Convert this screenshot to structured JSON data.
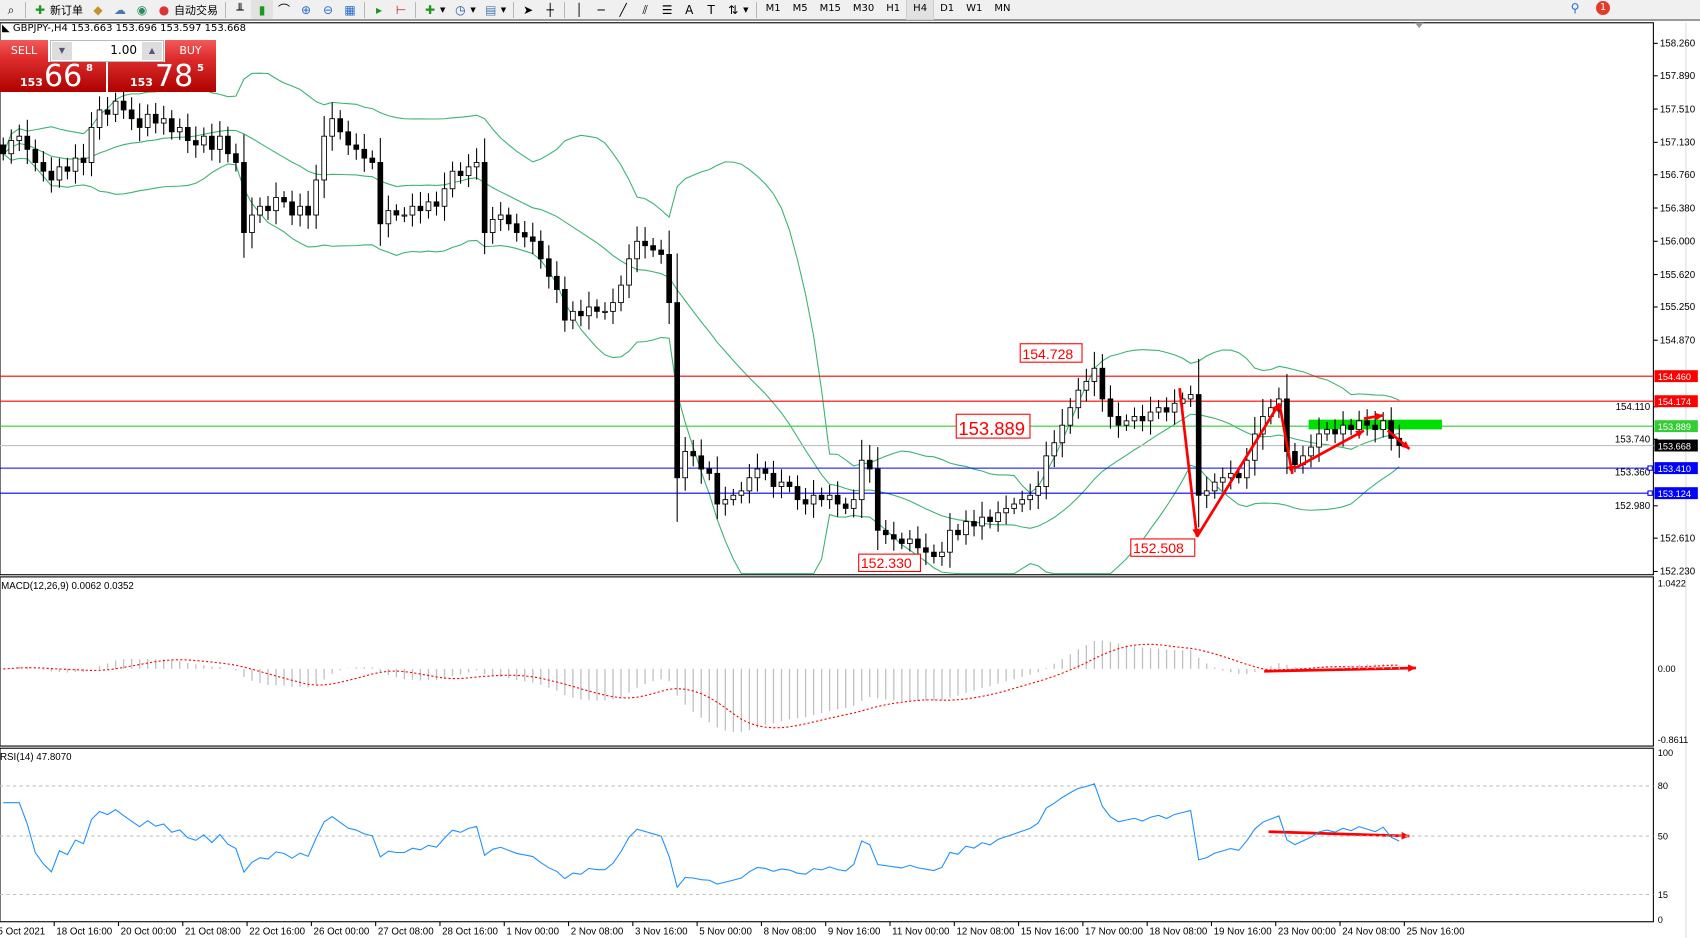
{
  "toolbar": {
    "new_order_label": "新订单",
    "auto_trading_label": "自动交易",
    "timeframes": [
      "M1",
      "M5",
      "M15",
      "M30",
      "H1",
      "H4",
      "D1",
      "W1",
      "MN"
    ],
    "active_timeframe": "H4",
    "notification_count": "1"
  },
  "chart_header": {
    "symbol_timeframe": "GBPJPY-,H4",
    "ohlc": "153.663 153.696 153.597 153.668"
  },
  "trade_panel": {
    "sell_label": "SELL",
    "buy_label": "BUY",
    "lot": "1.00",
    "sell_big": "153",
    "sell_mid": "66",
    "sell_small": "8",
    "buy_big": "153",
    "buy_mid": "78",
    "buy_small": "5"
  },
  "price_axis": [
    "158.260",
    "157.890",
    "157.510",
    "157.130",
    "156.760",
    "156.380",
    "156.000",
    "155.620",
    "155.250",
    "154.870",
    "154.110",
    "153.740",
    "153.360",
    "152.980",
    "152.610",
    "152.230"
  ],
  "time_axis": [
    "15 Oct 2021",
    "18 Oct 16:00",
    "20 Oct 00:00",
    "21 Oct 08:00",
    "22 Oct 16:00",
    "26 Oct 00:00",
    "27 Oct 08:00",
    "28 Oct 16:00",
    "1 Nov 00:00",
    "2 Nov 08:00",
    "3 Nov 16:00",
    "5 Nov 00:00",
    "8 Nov 08:00",
    "9 Nov 16:00",
    "11 Nov 00:00",
    "12 Nov 08:00",
    "15 Nov 16:00",
    "17 Nov 00:00",
    "18 Nov 08:00",
    "19 Nov 16:00",
    "23 Nov 00:00",
    "24 Nov 08:00",
    "25 Nov 16:00"
  ],
  "hlines": [
    {
      "price": 154.46,
      "label": "154.460",
      "color": "#ff0000"
    },
    {
      "price": 154.174,
      "label": "154.174",
      "color": "#ff0000"
    },
    {
      "price": 153.889,
      "label": "153.889",
      "color": "#32cd32"
    },
    {
      "price": 153.668,
      "label": "153.668",
      "color": "#c0c0c0",
      "label_bg": "#000000"
    },
    {
      "price": 153.41,
      "label": "153.410",
      "color": "#0000ff"
    },
    {
      "price": 153.124,
      "label": "153.124",
      "color": "#0000ff"
    }
  ],
  "annotations": [
    {
      "text": "154.728"
    },
    {
      "text": "153.889"
    },
    {
      "text": "152.330"
    },
    {
      "text": "152.508"
    }
  ],
  "macd": {
    "label": "MACD(12,26,9) 0.0062 0.0352",
    "axis": [
      "1.0422",
      "0.00",
      "-0.8611"
    ],
    "max": 1.0422,
    "min": -0.8611
  },
  "rsi": {
    "label": "RSI(14) 47.8070",
    "axis": [
      "100",
      "80",
      "50",
      "15",
      "0"
    ],
    "levels": [
      80,
      50,
      15
    ]
  },
  "colors": {
    "bands": "#3cb371",
    "signal": "#ff0000",
    "rsi": "#1e90ff",
    "hist": "#c0c0c0",
    "annotation": "#ff0000"
  },
  "chart_data": {
    "type": "candlestick",
    "price_range": [
      152.23,
      158.26
    ],
    "first_open": 157.1,
    "closes": [
      157.0,
      157.15,
      157.2,
      157.05,
      156.9,
      156.8,
      156.7,
      156.85,
      156.8,
      156.95,
      156.9,
      157.3,
      157.5,
      157.45,
      157.6,
      157.5,
      157.4,
      157.3,
      157.45,
      157.35,
      157.4,
      157.25,
      157.3,
      157.15,
      157.1,
      157.2,
      157.05,
      157.2,
      157.0,
      156.9,
      156.1,
      156.3,
      156.4,
      156.35,
      156.5,
      156.45,
      156.3,
      156.4,
      156.3,
      156.7,
      157.2,
      157.4,
      157.25,
      157.1,
      157.05,
      156.95,
      156.9,
      156.2,
      156.35,
      156.3,
      156.3,
      156.4,
      156.35,
      156.45,
      156.4,
      156.6,
      156.8,
      156.75,
      156.85,
      156.9,
      156.1,
      156.25,
      156.3,
      156.2,
      156.1,
      156.05,
      156.0,
      155.8,
      155.6,
      155.45,
      155.1,
      155.2,
      155.15,
      155.25,
      155.2,
      155.2,
      155.3,
      155.5,
      155.8,
      156.0,
      155.95,
      155.9,
      155.85,
      155.3,
      153.3,
      153.6,
      153.55,
      153.4,
      153.35,
      153.0,
      153.05,
      153.1,
      153.15,
      153.3,
      153.4,
      153.35,
      153.2,
      153.25,
      153.2,
      153.05,
      153.0,
      153.1,
      153.05,
      153.1,
      153.0,
      152.95,
      153.05,
      153.5,
      153.4,
      152.7,
      152.65,
      152.6,
      152.55,
      152.6,
      152.5,
      152.45,
      152.4,
      152.45,
      152.7,
      152.65,
      152.8,
      152.75,
      152.85,
      152.8,
      152.9,
      152.95,
      153.0,
      153.05,
      153.1,
      153.2,
      153.55,
      153.7,
      153.9,
      154.1,
      154.3,
      154.4,
      154.55,
      154.2,
      154.0,
      153.9,
      153.95,
      154.0,
      153.95,
      154.05,
      154.1,
      154.05,
      154.15,
      154.2,
      154.25,
      153.1,
      153.15,
      153.25,
      153.3,
      153.35,
      153.3,
      153.5,
      153.8,
      154.0,
      154.1,
      154.2,
      153.6,
      153.45,
      153.55,
      153.65,
      153.8,
      153.85,
      153.8,
      153.9,
      153.85,
      153.95,
      153.9,
      153.85,
      153.95,
      153.75,
      153.668
    ]
  }
}
